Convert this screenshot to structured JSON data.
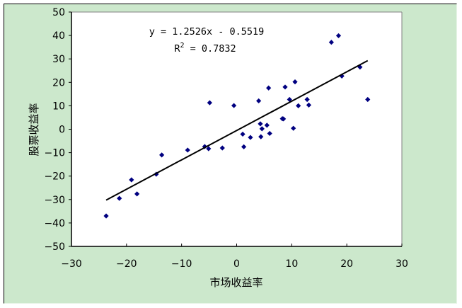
{
  "chart_data": {
    "type": "scatter",
    "title": "",
    "xlabel": "市场收益率",
    "ylabel": "股票收益率",
    "xlim": [
      -30,
      30
    ],
    "ylim": [
      -50,
      50
    ],
    "xticks": [
      -30,
      -20,
      -10,
      0,
      10,
      20,
      30
    ],
    "yticks": [
      -50,
      -40,
      -30,
      -20,
      -10,
      0,
      10,
      20,
      30,
      40,
      50
    ],
    "grid": false,
    "legend": null,
    "marker_color": "#000080",
    "series": [
      {
        "name": "股票收益率",
        "points": [
          [
            -23.7,
            -37.0
          ],
          [
            -21.3,
            -29.5
          ],
          [
            -19.1,
            -21.6
          ],
          [
            -18.1,
            -27.6
          ],
          [
            -14.6,
            -19.2
          ],
          [
            -13.6,
            -11.0
          ],
          [
            -8.9,
            -8.9
          ],
          [
            -5.8,
            -7.4
          ],
          [
            -5.1,
            -8.3
          ],
          [
            -4.9,
            11.3
          ],
          [
            -2.6,
            -8.0
          ],
          [
            -0.5,
            10.1
          ],
          [
            1.1,
            -2.1
          ],
          [
            1.3,
            -7.5
          ],
          [
            2.5,
            -3.5
          ],
          [
            4.0,
            12.1
          ],
          [
            4.3,
            2.3
          ],
          [
            4.4,
            -3.2
          ],
          [
            4.6,
            0.2
          ],
          [
            5.5,
            1.7
          ],
          [
            5.8,
            17.6
          ],
          [
            6.0,
            -1.8
          ],
          [
            8.3,
            4.5
          ],
          [
            8.5,
            4.4
          ],
          [
            8.8,
            18.0
          ],
          [
            9.6,
            12.7
          ],
          [
            10.3,
            0.4
          ],
          [
            10.6,
            20.2
          ],
          [
            11.2,
            10.0
          ],
          [
            12.8,
            12.7
          ],
          [
            13.1,
            10.3
          ],
          [
            17.2,
            37.1
          ],
          [
            18.5,
            39.9
          ],
          [
            19.1,
            22.7
          ],
          [
            22.4,
            26.5
          ],
          [
            23.8,
            12.7
          ]
        ]
      }
    ],
    "trendline": {
      "type": "linear",
      "slope": 1.2526,
      "intercept": -0.5519,
      "x_range": [
        -23.7,
        23.8
      ],
      "equation_label": "y = 1.2526x - 0.5519",
      "r_squared_label": "R",
      "r_squared_sup": "2",
      "r_squared_value": " = 0.7832"
    }
  },
  "colors": {
    "chart_background": "#cce8cc",
    "plot_background": "#ffffff",
    "marker": "#000080",
    "trendline": "#000000"
  }
}
